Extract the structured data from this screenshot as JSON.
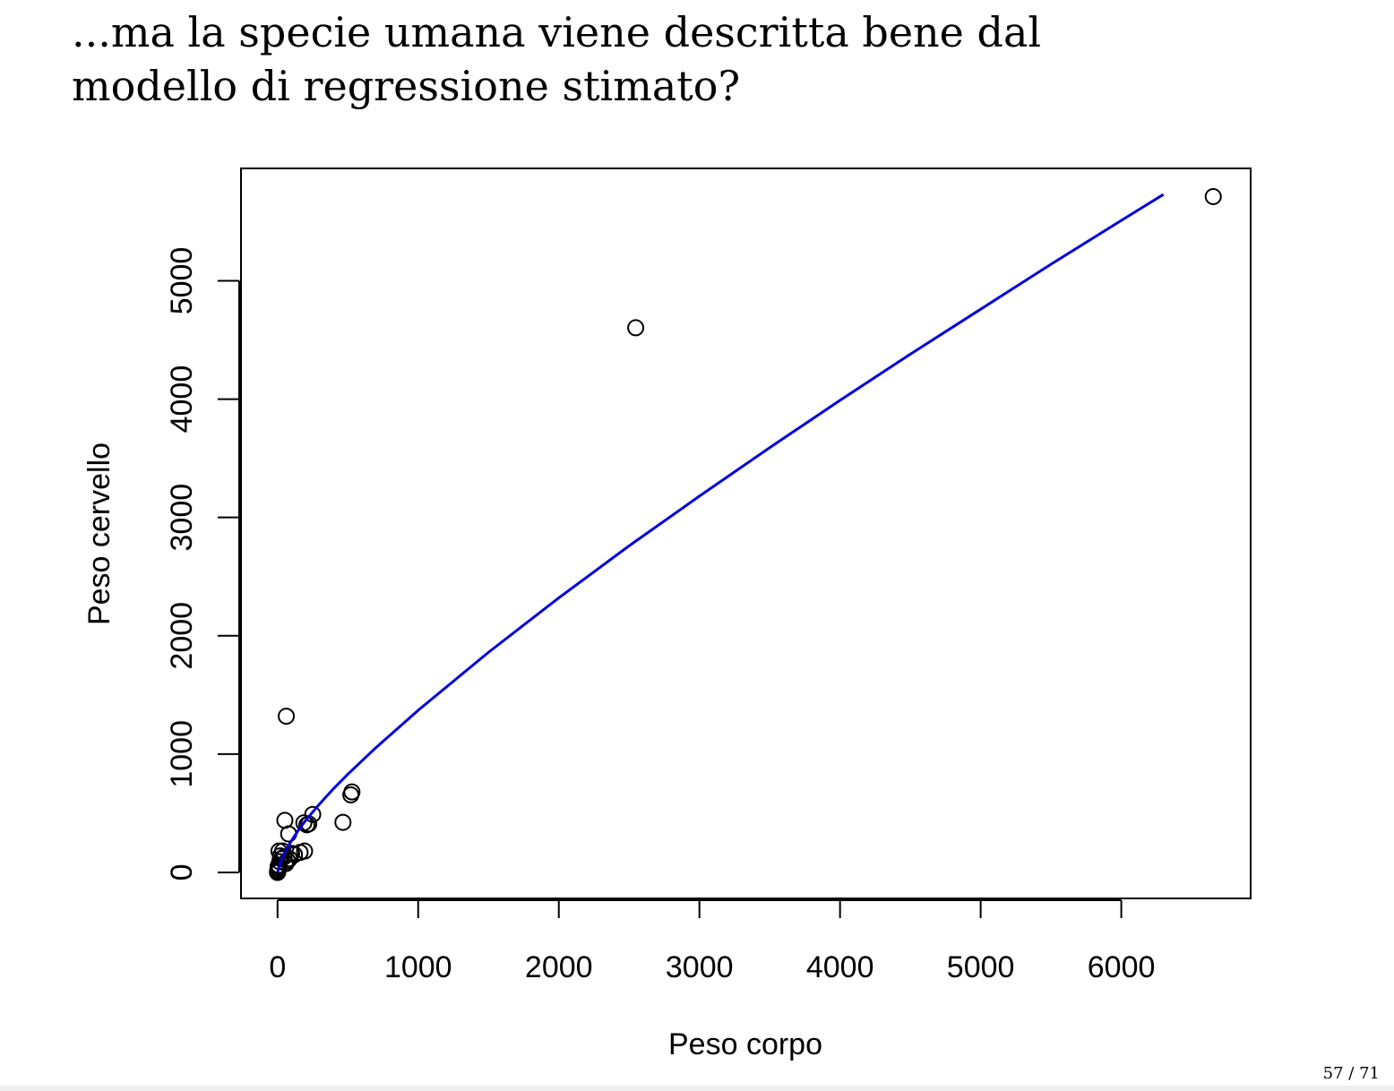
{
  "slide": {
    "title_line1": "...ma la specie umana viene descritta bene dal",
    "title_line2": "modello di regressione stimato?",
    "page_number": "57 / 71"
  },
  "chart_data": {
    "type": "scatter",
    "title": "",
    "xlabel": "Peso corpo",
    "ylabel": "Peso cervello",
    "xlim": [
      -260,
      6920
    ],
    "ylim": [
      -220,
      5950
    ],
    "xticks": [
      0,
      1000,
      2000,
      3000,
      4000,
      5000,
      6000
    ],
    "yticks": [
      0,
      1000,
      2000,
      3000,
      4000,
      5000
    ],
    "grid": false,
    "legend": "none",
    "points_color": "#000000",
    "curve_color": "#0000dd",
    "series": [
      {
        "kind": "points",
        "x": [
          6654,
          2547,
          62,
          52,
          79,
          250,
          521,
          529,
          465,
          187,
          208,
          222,
          192,
          160,
          85,
          70,
          27,
          36,
          10,
          55,
          60,
          4,
          6,
          2,
          3,
          1,
          1.5,
          0.5,
          0.3,
          0.1,
          0.05,
          0.02,
          8,
          15,
          20,
          45,
          100,
          120
        ],
        "y": [
          5712,
          4603,
          1320,
          440,
          325,
          490,
          655,
          680,
          423,
          419,
          402,
          410,
          180,
          169,
          115,
          100,
          115,
          180,
          180,
          80,
          75,
          50,
          40,
          25,
          20,
          10,
          8,
          5,
          3,
          1,
          0.5,
          0.2,
          60,
          90,
          140,
          130,
          160,
          150
        ]
      },
      {
        "kind": "curve",
        "x": [
          0,
          10,
          30,
          60,
          100,
          150,
          200,
          300,
          400,
          500,
          700,
          1000,
          1500,
          2000,
          2500,
          3000,
          3500,
          4000,
          4500,
          5000,
          5500,
          6000,
          6300
        ],
        "y": [
          0,
          50,
          115,
          190,
          270,
          360,
          440,
          580,
          710,
          830,
          1055,
          1370,
          1860,
          2320,
          2760,
          3180,
          3590,
          3990,
          4380,
          4760,
          5140,
          5510,
          5730
        ]
      }
    ]
  }
}
